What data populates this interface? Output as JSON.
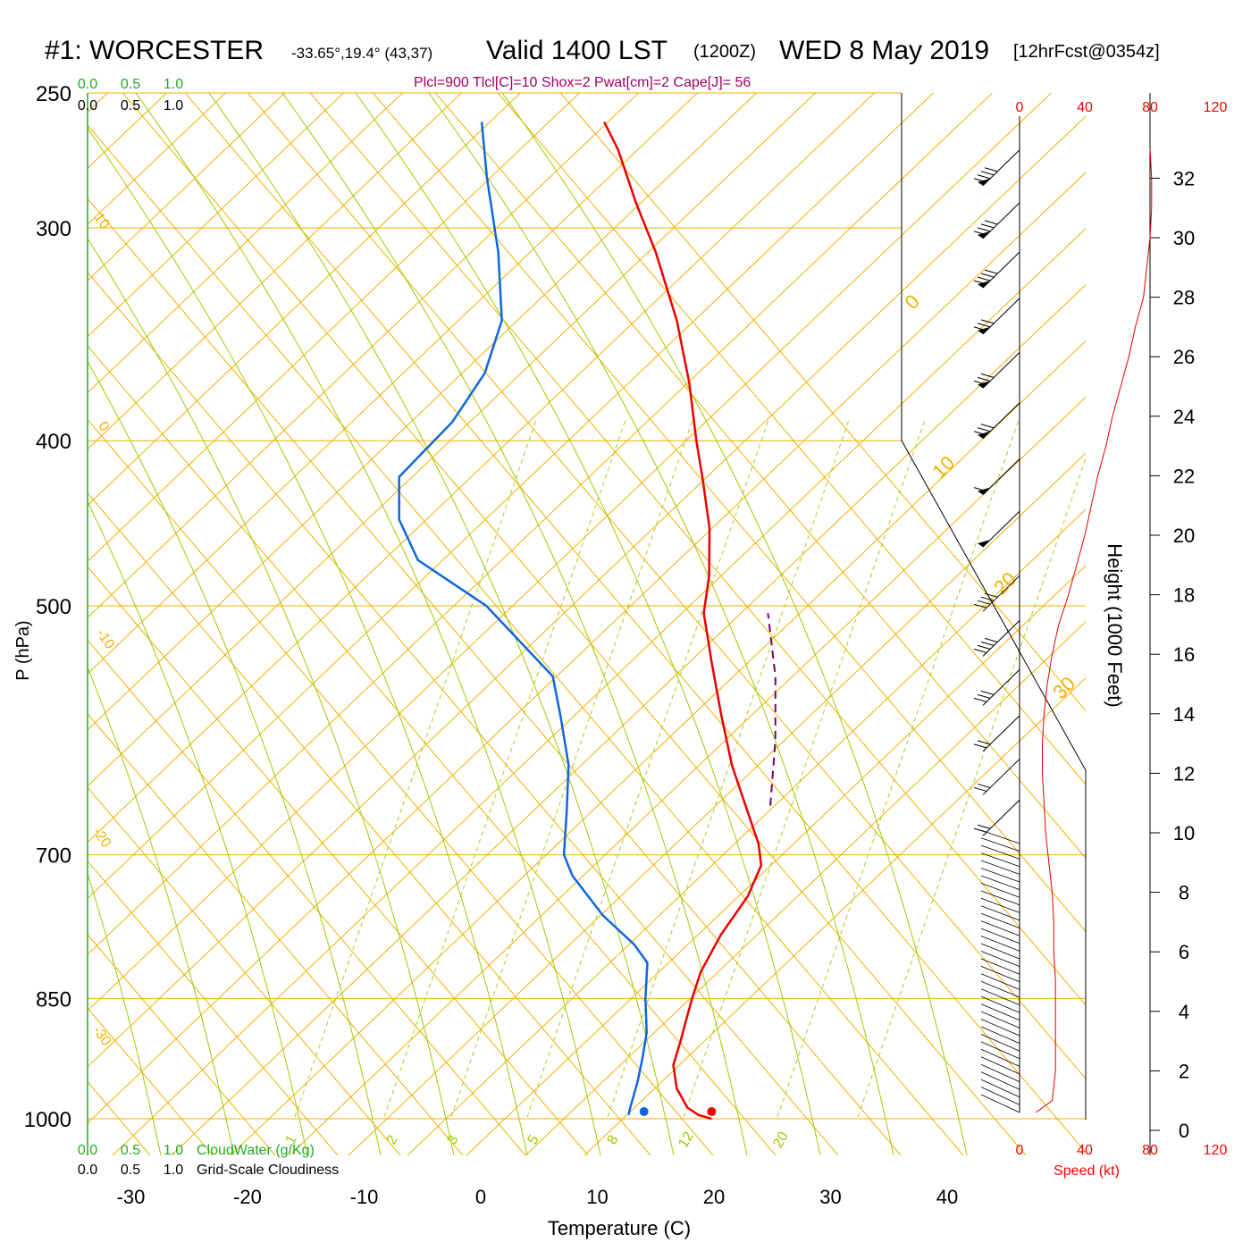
{
  "header": {
    "station": "#1: WORCESTER",
    "coords": "-33.65°,19.4° (43,37)",
    "valid": "Valid 1400 LST",
    "zulu": "(1200Z)",
    "date": "WED 8 May 2019",
    "forecast": "[12hrFcst@0354z]",
    "indices": "Plcl=900 Tlcl[C]=10 Shox=2 Pwat[cm]=2 Cape[J]= 56"
  },
  "chart_data": {
    "type": "skew-t",
    "xlabel": "Temperature (C)",
    "ylabel": "P (hPa)",
    "right_label": "Height (1000 Feet)",
    "speed_label": "Speed (kt)",
    "cloudwater_label": "CloudWater (g/Kg)",
    "cloudiness_label": "Grid-Scale Cloudiness",
    "temp_ticks": [
      -30,
      -20,
      -10,
      0,
      10,
      20,
      30,
      40
    ],
    "temp_range": [
      -33,
      36
    ],
    "pressure_labels": [
      250,
      300,
      400,
      500,
      700,
      850,
      1000
    ],
    "pressure_range": [
      1050,
      250
    ],
    "height_ticks": [
      0,
      2,
      4,
      6,
      8,
      10,
      12,
      14,
      16,
      18,
      20,
      22,
      24,
      26,
      28,
      30,
      32
    ],
    "speed_ticks": [
      "0",
      "40",
      "80",
      "120"
    ],
    "scale_ticks": [
      "0.0",
      "0.5",
      "1.0"
    ],
    "isotherm_labels": [
      "0",
      "10",
      "20",
      "30"
    ],
    "adiabat_labels": [
      "10",
      "0",
      "-10",
      "-20",
      "-30"
    ],
    "mixing_ratio_labels": [
      "1",
      "2",
      "3",
      "5",
      "8",
      "12",
      "20"
    ],
    "temperature_profile": [
      {
        "p": 1000,
        "t": 19.8
      },
      {
        "p": 995,
        "t": 18.5
      },
      {
        "p": 985,
        "t": 17.2
      },
      {
        "p": 960,
        "t": 15.4
      },
      {
        "p": 930,
        "t": 14.0
      },
      {
        "p": 900,
        "t": 13.5
      },
      {
        "p": 875,
        "t": 13.0
      },
      {
        "p": 850,
        "t": 12.5
      },
      {
        "p": 820,
        "t": 12.0
      },
      {
        "p": 780,
        "t": 12.0
      },
      {
        "p": 740,
        "t": 12.5
      },
      {
        "p": 710,
        "t": 12.2
      },
      {
        "p": 690,
        "t": 11.0
      },
      {
        "p": 660,
        "t": 8.5
      },
      {
        "p": 620,
        "t": 5.0
      },
      {
        "p": 580,
        "t": 1.8
      },
      {
        "p": 540,
        "t": -1.5
      },
      {
        "p": 505,
        "t": -4.5
      },
      {
        "p": 480,
        "t": -5.8
      },
      {
        "p": 450,
        "t": -8.0
      },
      {
        "p": 420,
        "t": -11.0
      },
      {
        "p": 400,
        "t": -13.2
      },
      {
        "p": 370,
        "t": -16.5
      },
      {
        "p": 340,
        "t": -20.5
      },
      {
        "p": 310,
        "t": -25.5
      },
      {
        "p": 290,
        "t": -29.5
      },
      {
        "p": 270,
        "t": -33.5
      },
      {
        "p": 260,
        "t": -36.0
      }
    ],
    "dewpoint_profile": [
      {
        "p": 995,
        "t": 12.5
      },
      {
        "p": 985,
        "t": 12.3
      },
      {
        "p": 950,
        "t": 11.7
      },
      {
        "p": 920,
        "t": 11.0
      },
      {
        "p": 890,
        "t": 10.2
      },
      {
        "p": 850,
        "t": 8.5
      },
      {
        "p": 810,
        "t": 7.0
      },
      {
        "p": 790,
        "t": 5.0
      },
      {
        "p": 760,
        "t": 1.0
      },
      {
        "p": 720,
        "t": -3.5
      },
      {
        "p": 700,
        "t": -5.2
      },
      {
        "p": 660,
        "t": -7.0
      },
      {
        "p": 620,
        "t": -9.0
      },
      {
        "p": 580,
        "t": -12.0
      },
      {
        "p": 550,
        "t": -14.5
      },
      {
        "p": 500,
        "t": -23.5
      },
      {
        "p": 470,
        "t": -31.5
      },
      {
        "p": 445,
        "t": -35.0
      },
      {
        "p": 420,
        "t": -37.0
      },
      {
        "p": 390,
        "t": -35.0
      },
      {
        "p": 365,
        "t": -34.5
      },
      {
        "p": 340,
        "t": -35.5
      },
      {
        "p": 310,
        "t": -39.0
      },
      {
        "p": 280,
        "t": -43.5
      },
      {
        "p": 260,
        "t": -46.5
      }
    ],
    "surface_temperature": 19.8,
    "surface_dewpoint": 14.0,
    "parcel_path": [
      {
        "p": 655,
        "t": 10.2
      },
      {
        "p": 600,
        "t": 7.6
      },
      {
        "p": 550,
        "t": 4.6
      },
      {
        "p": 505,
        "t": 1.0
      }
    ],
    "wind_speed_profile": [
      {
        "h": 0.6,
        "s": 10
      },
      {
        "h": 1.0,
        "s": 20
      },
      {
        "h": 2.0,
        "s": 22
      },
      {
        "h": 3.0,
        "s": 22
      },
      {
        "h": 4.0,
        "s": 22
      },
      {
        "h": 5.0,
        "s": 22
      },
      {
        "h": 6.0,
        "s": 21
      },
      {
        "h": 7.0,
        "s": 21
      },
      {
        "h": 8.0,
        "s": 20
      },
      {
        "h": 9.0,
        "s": 18
      },
      {
        "h": 10.0,
        "s": 16
      },
      {
        "h": 11.0,
        "s": 15
      },
      {
        "h": 12.0,
        "s": 14
      },
      {
        "h": 13.0,
        "s": 14
      },
      {
        "h": 14.0,
        "s": 15
      },
      {
        "h": 15.0,
        "s": 17
      },
      {
        "h": 16.0,
        "s": 20
      },
      {
        "h": 17.0,
        "s": 24
      },
      {
        "h": 18.0,
        "s": 30
      },
      {
        "h": 19.0,
        "s": 35
      },
      {
        "h": 20.0,
        "s": 40
      },
      {
        "h": 21.0,
        "s": 44
      },
      {
        "h": 22.0,
        "s": 48
      },
      {
        "h": 23.0,
        "s": 53
      },
      {
        "h": 24.0,
        "s": 57
      },
      {
        "h": 25.0,
        "s": 62
      },
      {
        "h": 26.0,
        "s": 67
      },
      {
        "h": 27.0,
        "s": 71
      },
      {
        "h": 28.0,
        "s": 76
      },
      {
        "h": 29.0,
        "s": 78
      },
      {
        "h": 30.0,
        "s": 80
      },
      {
        "h": 31.0,
        "s": 81
      },
      {
        "h": 32.0,
        "s": 81
      },
      {
        "h": 33.0,
        "s": 80
      }
    ],
    "wind_barbs": [
      {
        "p": 270,
        "pennants": 1,
        "full": 4
      },
      {
        "p": 290,
        "pennants": 1,
        "full": 4
      },
      {
        "p": 310,
        "pennants": 1,
        "full": 4
      },
      {
        "p": 330,
        "pennants": 1,
        "full": 3
      },
      {
        "p": 355,
        "pennants": 1,
        "full": 3
      },
      {
        "p": 380,
        "pennants": 1,
        "full": 3
      },
      {
        "p": 410,
        "pennants": 1,
        "full": 1
      },
      {
        "p": 440,
        "pennants": 1,
        "full": 0
      },
      {
        "p": 480,
        "pennants": 0,
        "full": 4
      },
      {
        "p": 510,
        "pennants": 0,
        "full": 4
      },
      {
        "p": 545,
        "pennants": 0,
        "full": 3
      },
      {
        "p": 580,
        "pennants": 0,
        "full": 2
      },
      {
        "p": 615,
        "pennants": 0,
        "full": 2
      },
      {
        "p": 650,
        "pennants": 0,
        "full": 2
      }
    ]
  }
}
